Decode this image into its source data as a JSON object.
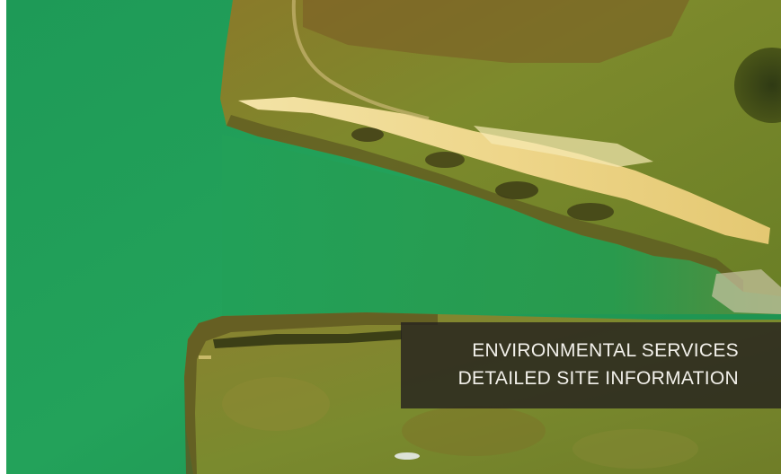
{
  "caption": {
    "line1": "ENVIRONMENTAL SERVICES",
    "line2": "DETAILED SITE INFORMATION"
  },
  "colors": {
    "water": "#1f9a55",
    "vegetation": "#7f8f2a",
    "sand": "#efd890",
    "overlay": "#26221e"
  }
}
